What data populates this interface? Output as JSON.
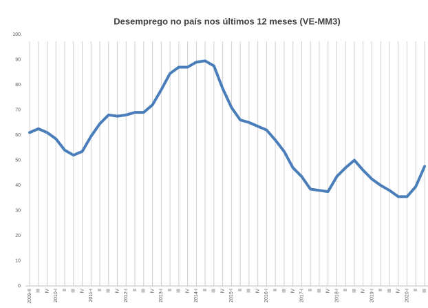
{
  "chart_data": {
    "type": "line",
    "title": "Desemprego no país nos últimos 12 meses (VE-MM3)",
    "categories": [
      "2009-II",
      "III",
      "IV",
      "2010-I",
      "II",
      "III",
      "IV",
      "2011-I",
      "II",
      "III",
      "IV",
      "2012-I",
      "II",
      "III",
      "IV",
      "2013-I",
      "II",
      "III",
      "IV",
      "2014-I",
      "II",
      "III",
      "IV",
      "2015-I",
      "II",
      "III",
      "IV",
      "2016-I",
      "II",
      "III",
      "IV",
      "2017-I",
      "II",
      "III",
      "IV",
      "2018-I",
      "II",
      "III",
      "IV",
      "2019-I",
      "II",
      "III",
      "IV",
      "2020-I",
      "II",
      "III"
    ],
    "series": [
      {
        "name": "Desemprego",
        "color": "#4a7ebb",
        "values": [
          61,
          62.5,
          61,
          58.5,
          54,
          52,
          53.5,
          59.5,
          64.5,
          68,
          67.5,
          68,
          69,
          69,
          72,
          78,
          84.5,
          87,
          87,
          89,
          89.5,
          87.5,
          78.5,
          71,
          66,
          65,
          63.5,
          62,
          58,
          53.5,
          47,
          43.5,
          38.5,
          38,
          37.5,
          43.5,
          47,
          50,
          46,
          42.5,
          40,
          38,
          35.5,
          35.5,
          39.5,
          47.5
        ]
      }
    ],
    "ylim": [
      0,
      100
    ],
    "yticks": [
      0,
      10,
      20,
      30,
      40,
      50,
      60,
      70,
      80,
      90,
      100
    ],
    "grid": "x"
  }
}
